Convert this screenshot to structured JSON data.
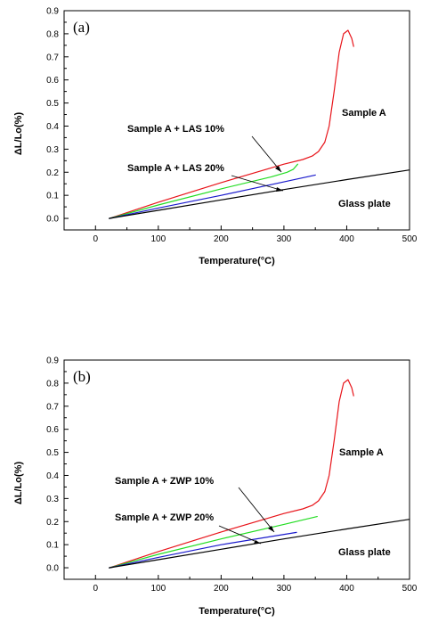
{
  "chart_data": [
    {
      "type": "line",
      "panel_label": "(a)",
      "xlabel": "Temperature(°C)",
      "ylabel": "ΔL/Lo(%)",
      "xlim": [
        -50,
        500
      ],
      "ylim": [
        -0.05,
        0.9
      ],
      "xticks": [
        0,
        100,
        200,
        300,
        400,
        500
      ],
      "yticks": [
        0.0,
        0.1,
        0.2,
        0.3,
        0.4,
        0.5,
        0.6,
        0.7,
        0.8,
        0.9
      ],
      "series": [
        {
          "name": "Sample A",
          "color": "#e8141a",
          "points": [
            [
              22,
              0
            ],
            [
              100,
              0.07
            ],
            [
              200,
              0.155
            ],
            [
              300,
              0.235
            ],
            [
              330,
              0.255
            ],
            [
              345,
              0.27
            ],
            [
              355,
              0.29
            ],
            [
              365,
              0.33
            ],
            [
              372,
              0.4
            ],
            [
              380,
              0.55
            ],
            [
              388,
              0.72
            ],
            [
              395,
              0.8
            ],
            [
              402,
              0.815
            ],
            [
              408,
              0.78
            ],
            [
              411,
              0.745
            ]
          ]
        },
        {
          "name": "Sample A + LAS 10%",
          "color": "#22dd22",
          "points": [
            [
              22,
              0
            ],
            [
              100,
              0.058
            ],
            [
              200,
              0.128
            ],
            [
              280,
              0.18
            ],
            [
              305,
              0.2
            ],
            [
              315,
              0.213
            ],
            [
              322,
              0.235
            ]
          ]
        },
        {
          "name": "Sample A + LAS 20%",
          "color": "#1a1acc",
          "points": [
            [
              22,
              0
            ],
            [
              100,
              0.045
            ],
            [
              200,
              0.1
            ],
            [
              300,
              0.158
            ],
            [
              350,
              0.188
            ]
          ]
        },
        {
          "name": "Glass plate",
          "color": "#000000",
          "points": [
            [
              22,
              0
            ],
            [
              100,
              0.035
            ],
            [
              200,
              0.08
            ],
            [
              300,
              0.125
            ],
            [
              400,
              0.168
            ],
            [
              500,
              0.21
            ]
          ]
        }
      ]
    },
    {
      "type": "line",
      "panel_label": "(b)",
      "xlabel": "Temperature(°C)",
      "ylabel": "ΔL/Lo(%)",
      "xlim": [
        -50,
        500
      ],
      "ylim": [
        -0.05,
        0.9
      ],
      "xticks": [
        0,
        100,
        200,
        300,
        400,
        500
      ],
      "yticks": [
        0.0,
        0.1,
        0.2,
        0.3,
        0.4,
        0.5,
        0.6,
        0.7,
        0.8,
        0.9
      ],
      "series": [
        {
          "name": "Sample A",
          "color": "#e8141a",
          "points": [
            [
              22,
              0
            ],
            [
              100,
              0.07
            ],
            [
              200,
              0.155
            ],
            [
              300,
              0.235
            ],
            [
              330,
              0.255
            ],
            [
              345,
              0.27
            ],
            [
              355,
              0.29
            ],
            [
              365,
              0.33
            ],
            [
              372,
              0.4
            ],
            [
              380,
              0.55
            ],
            [
              388,
              0.72
            ],
            [
              395,
              0.8
            ],
            [
              402,
              0.815
            ],
            [
              408,
              0.78
            ],
            [
              411,
              0.745
            ]
          ]
        },
        {
          "name": "Sample A + ZWP 10%",
          "color": "#22dd22",
          "points": [
            [
              22,
              0
            ],
            [
              100,
              0.058
            ],
            [
              200,
              0.125
            ],
            [
              300,
              0.188
            ],
            [
              353,
              0.222
            ]
          ]
        },
        {
          "name": "Sample A + ZWP 20%",
          "color": "#1a1acc",
          "points": [
            [
              22,
              0
            ],
            [
              100,
              0.045
            ],
            [
              200,
              0.1
            ],
            [
              320,
              0.153
            ]
          ]
        },
        {
          "name": "Glass plate",
          "color": "#000000",
          "points": [
            [
              22,
              0
            ],
            [
              100,
              0.035
            ],
            [
              200,
              0.08
            ],
            [
              300,
              0.125
            ],
            [
              400,
              0.168
            ],
            [
              500,
              0.21
            ]
          ]
        }
      ]
    }
  ]
}
